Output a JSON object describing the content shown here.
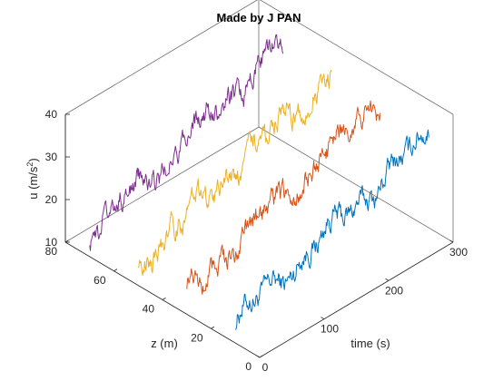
{
  "chart_data": {
    "type": "line",
    "projection": "3d",
    "title": "Made by J PAN",
    "xlabel": "time (s)",
    "ylabel": "z (m)",
    "zlabel": "u (m/s²)",
    "zlabel_main": "u (m/s",
    "zlabel_sup": "2",
    "zlabel_close": ")",
    "xlim": [
      0,
      300
    ],
    "ylim": [
      0,
      80
    ],
    "zlim": [
      10,
      40
    ],
    "xticks": [
      0,
      100,
      200,
      300
    ],
    "yticks": [
      0,
      20,
      40,
      60,
      80
    ],
    "zticks": [
      10,
      20,
      30,
      40
    ],
    "grid": false,
    "legend": "none",
    "series": [
      {
        "color": "#0072BD",
        "z_position": 10,
        "x_start": 0,
        "x_end": 300,
        "u_start": 15,
        "u_end": 32,
        "noise": 3.2
      },
      {
        "color": "#D95319",
        "z_position": 30,
        "x_start": 0,
        "x_end": 300,
        "u_start": 15,
        "u_end": 33,
        "noise": 3.2
      },
      {
        "color": "#EDB120",
        "z_position": 50,
        "x_start": 0,
        "x_end": 300,
        "u_start": 15,
        "u_end": 33,
        "noise": 3.4
      },
      {
        "color": "#7E2F8E",
        "z_position": 70,
        "x_start": 0,
        "x_end": 300,
        "u_start": 15,
        "u_end": 33,
        "noise": 3.2
      }
    ]
  }
}
